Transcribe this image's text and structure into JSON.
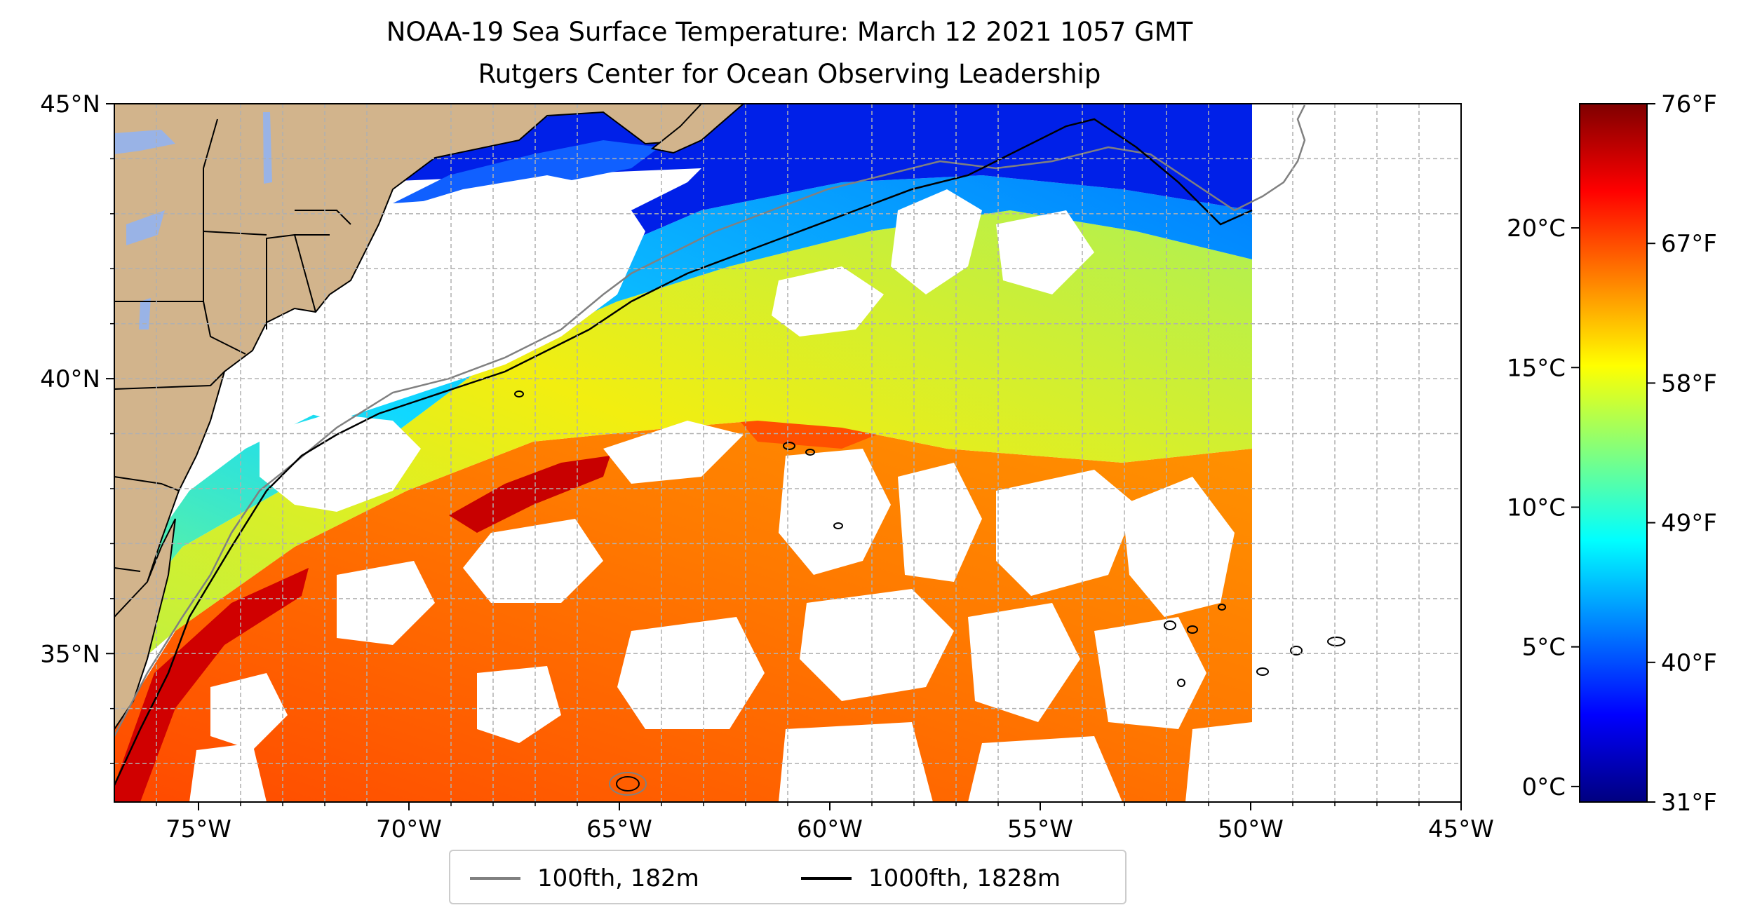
{
  "title": {
    "line1": "NOAA-19 Sea Surface Temperature: March 12 2021 1057 GMT",
    "line2": "Rutgers Center for Ocean Observing Leadership"
  },
  "map": {
    "lon_range": [
      -77,
      -45
    ],
    "lat_range": [
      32.3,
      45
    ],
    "lon_ticks": [
      "75°W",
      "70°W",
      "65°W",
      "60°W",
      "55°W",
      "50°W",
      "45°W"
    ],
    "lon_tick_values": [
      -75,
      -70,
      -65,
      -60,
      -55,
      -50,
      -45
    ],
    "lat_ticks": [
      "45°N",
      "40°N",
      "35°N"
    ],
    "lat_tick_values": [
      45,
      40,
      35
    ],
    "data_east_edge_lon": -50,
    "colors": {
      "land": "#d2b48c",
      "lakes": "#99b3e6",
      "clouds": "#ffffff",
      "grid": "#b0b0b0"
    }
  },
  "colorbar": {
    "celsius_ticks": [
      "20°C",
      "15°C",
      "10°C",
      "5°C",
      "0°C"
    ],
    "celsius_values": [
      20,
      15,
      10,
      5,
      0
    ],
    "fahrenheit_ticks": [
      "76°F",
      "67°F",
      "58°F",
      "49°F",
      "40°F",
      "31°F"
    ],
    "fahrenheit_values": [
      76,
      67,
      58,
      49,
      40,
      31
    ],
    "f_range": [
      31,
      76
    ],
    "colormap": "jet"
  },
  "legend": {
    "items": [
      {
        "label": "100fth, 182m",
        "color": "#808080"
      },
      {
        "label": "1000fth, 1828m",
        "color": "#000000"
      }
    ]
  }
}
